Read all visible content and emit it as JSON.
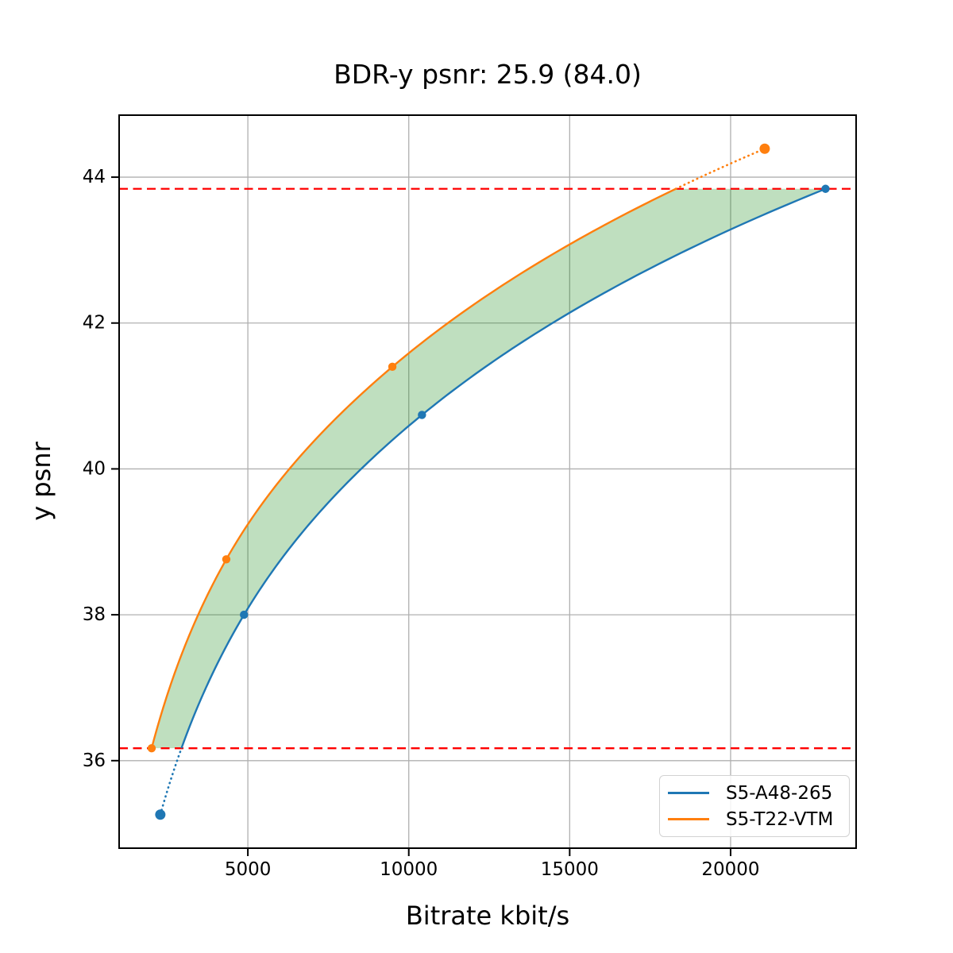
{
  "chart_data": {
    "type": "line",
    "title": "BDR-y psnr: 25.9 (84.0)",
    "xlabel": "Bitrate kbit/s",
    "ylabel": "y psnr",
    "xlim": [
      1000,
      23900
    ],
    "ylim": [
      34.8,
      44.85
    ],
    "xticks": [
      5000,
      10000,
      15000,
      20000
    ],
    "yticks": [
      36,
      38,
      40,
      42,
      44
    ],
    "grid": true,
    "grid_color": "#b0b0b0",
    "spine_color": "#000000",
    "series": [
      {
        "name": "S5-A48-265",
        "color": "#1f77b4",
        "bitrate_kbits": [
          2280,
          4880,
          10410,
          22950
        ],
        "psnr": [
          35.26,
          38.0,
          40.74,
          43.84
        ]
      },
      {
        "name": "S5-T22-VTM",
        "color": "#ff7f0e",
        "bitrate_kbits": [
          2010,
          4330,
          9490,
          21060
        ],
        "psnr": [
          36.17,
          38.76,
          41.4,
          44.39
        ]
      }
    ],
    "bd_overlap_psnr": [
      36.17,
      43.84
    ],
    "hline_color": "#ff0000",
    "fill_color": "#008000",
    "fill_opacity": 0.25,
    "legend": {
      "position": "lower right",
      "entries": [
        "S5-A48-265",
        "S5-T22-VTM"
      ]
    }
  }
}
